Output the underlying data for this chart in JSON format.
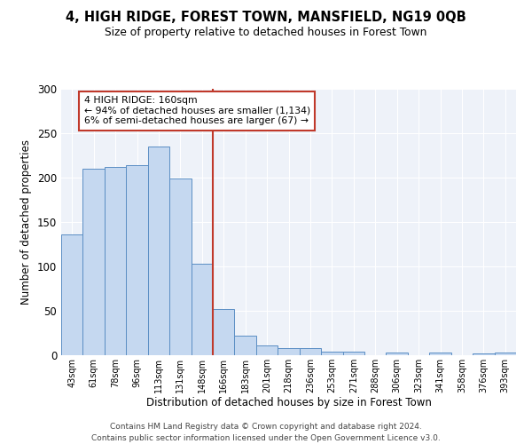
{
  "title1": "4, HIGH RIDGE, FOREST TOWN, MANSFIELD, NG19 0QB",
  "title2": "Size of property relative to detached houses in Forest Town",
  "xlabel": "Distribution of detached houses by size in Forest Town",
  "ylabel": "Number of detached properties",
  "categories": [
    "43sqm",
    "61sqm",
    "78sqm",
    "96sqm",
    "113sqm",
    "131sqm",
    "148sqm",
    "166sqm",
    "183sqm",
    "201sqm",
    "218sqm",
    "236sqm",
    "253sqm",
    "271sqm",
    "288sqm",
    "306sqm",
    "323sqm",
    "341sqm",
    "358sqm",
    "376sqm",
    "393sqm"
  ],
  "values": [
    136,
    210,
    212,
    214,
    235,
    199,
    103,
    52,
    22,
    11,
    8,
    8,
    4,
    4,
    0,
    3,
    0,
    3,
    0,
    2,
    3
  ],
  "bar_color": "#c5d8f0",
  "bar_edge_color": "#5b8ec4",
  "vline_color": "#c0392b",
  "annotation_text": "4 HIGH RIDGE: 160sqm\n← 94% of detached houses are smaller (1,134)\n6% of semi-detached houses are larger (67) →",
  "annotation_box_color": "#c0392b",
  "background_color": "#eef2f9",
  "ylim": [
    0,
    300
  ],
  "yticks": [
    0,
    50,
    100,
    150,
    200,
    250,
    300
  ],
  "footer1": "Contains HM Land Registry data © Crown copyright and database right 2024.",
  "footer2": "Contains public sector information licensed under the Open Government Licence v3.0."
}
